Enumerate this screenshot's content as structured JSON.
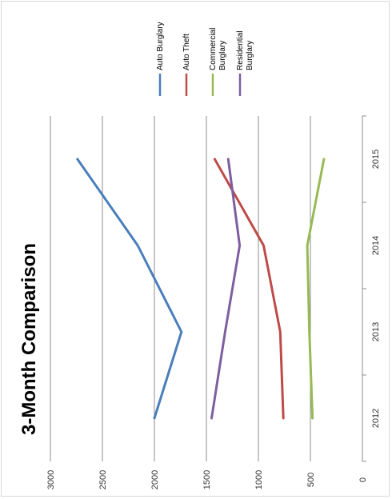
{
  "chart_data": {
    "type": "line",
    "orientation": "rotated-90-ccw",
    "title": "3-Month Comparison",
    "categories": [
      "2012",
      "2013",
      "2014",
      "2015"
    ],
    "ylim": [
      0,
      3000
    ],
    "yticks": [
      0,
      500,
      1000,
      1500,
      2000,
      2500,
      3000
    ],
    "grid": true,
    "legend_position": "top-right",
    "series": [
      {
        "name": "Auto Burglary",
        "values": [
          2000,
          1740,
          2160,
          2740
        ],
        "color": "#4a7ebb"
      },
      {
        "name": "Auto Theft",
        "values": [
          760,
          790,
          950,
          1420
        ],
        "color": "#be4b48"
      },
      {
        "name": "Commercial Burglary",
        "values": [
          480,
          510,
          530,
          370
        ],
        "color": "#98b954"
      },
      {
        "name": "Residential Burglary",
        "values": [
          1450,
          1320,
          1180,
          1290
        ],
        "color": "#7d5fa0"
      }
    ]
  }
}
